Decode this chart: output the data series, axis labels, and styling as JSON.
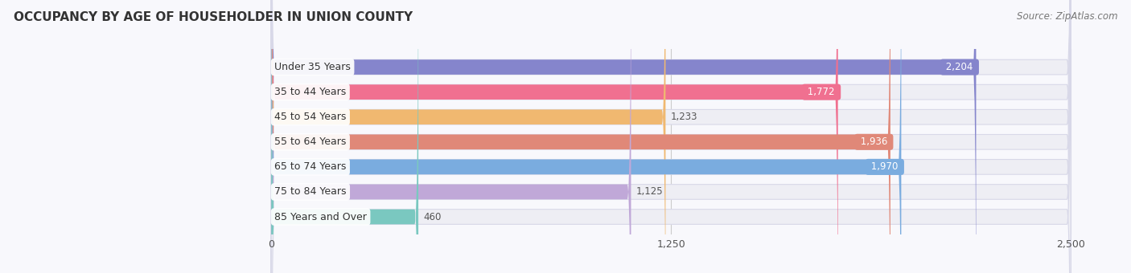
{
  "title": "OCCUPANCY BY AGE OF HOUSEHOLDER IN UNION COUNTY",
  "source": "Source: ZipAtlas.com",
  "categories": [
    "Under 35 Years",
    "35 to 44 Years",
    "45 to 54 Years",
    "55 to 64 Years",
    "65 to 74 Years",
    "75 to 84 Years",
    "85 Years and Over"
  ],
  "values": [
    2204,
    1772,
    1233,
    1936,
    1970,
    1125,
    460
  ],
  "bar_colors": [
    "#8585cc",
    "#f07090",
    "#f0b870",
    "#e08878",
    "#7aacdf",
    "#c0a8d8",
    "#7ac8c0"
  ],
  "bar_bg_color": "#eeeef4",
  "bar_border_color": "#d8d8e8",
  "xlim_min": -300,
  "xlim_max": 2600,
  "data_min": 0,
  "data_max": 2500,
  "xticks": [
    0,
    1250,
    2500
  ],
  "label_fontsize": 9,
  "value_fontsize": 8.5,
  "inside_threshold": 1500,
  "title_fontsize": 11,
  "source_fontsize": 8.5,
  "bg_color": "#f8f8fc"
}
